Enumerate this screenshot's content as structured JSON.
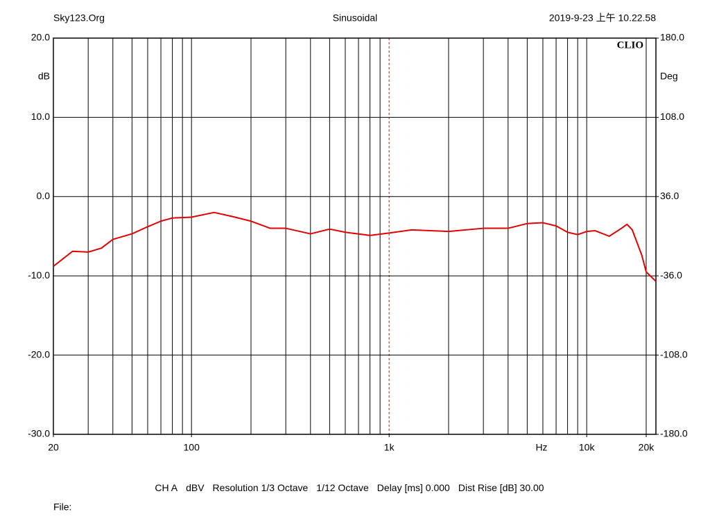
{
  "chart_data": {
    "type": "line",
    "header": {
      "left": "Sky123.Org",
      "title": "Sinusoidal",
      "right": "2019-9-23 上午 10.22.58"
    },
    "brand": "CLIO",
    "ylabel": "dB",
    "y2label": "Deg",
    "xunit": "Hz",
    "xlog": true,
    "xlim": [
      20,
      22400
    ],
    "ylim": [
      -30,
      20
    ],
    "y2lim": [
      -180,
      180
    ],
    "xticks": [
      20,
      100,
      {
        "value": 1000,
        "label": "1k"
      },
      {
        "value": 10000,
        "label": "10k"
      },
      {
        "value": 20000,
        "label": "20k"
      }
    ],
    "xgrid": [
      30,
      40,
      50,
      60,
      70,
      80,
      90,
      100,
      200,
      300,
      400,
      500,
      600,
      700,
      800,
      900,
      1000,
      2000,
      3000,
      4000,
      5000,
      6000,
      7000,
      8000,
      9000,
      10000,
      20000
    ],
    "cursor": 1000,
    "cursor_color": "#e00000",
    "yticks": [
      {
        "value": 20,
        "label": "20.0"
      },
      {
        "value": 10,
        "label": "10.0"
      },
      {
        "value": 0,
        "label": "0.0"
      },
      {
        "value": -10,
        "label": "-10.0"
      },
      {
        "value": -20,
        "label": "-20.0"
      },
      {
        "value": -30,
        "label": "-30.0"
      }
    ],
    "y2ticks": [
      {
        "value": 180,
        "label": "180.0"
      },
      {
        "value": 108,
        "label": "108.0"
      },
      {
        "value": 36,
        "label": "36.0"
      },
      {
        "value": -36,
        "label": "-36.0"
      },
      {
        "value": -108,
        "label": "-108.0"
      },
      {
        "value": -180,
        "label": "-180.0"
      }
    ],
    "grid": true,
    "x": [
      20,
      25,
      30,
      35,
      40,
      50,
      60,
      70,
      80,
      100,
      130,
      160,
      200,
      250,
      300,
      400,
      500,
      600,
      800,
      1000,
      1300,
      2000,
      3000,
      4000,
      5000,
      6000,
      7000,
      8000,
      9000,
      10000,
      11000,
      13000,
      15000,
      16000,
      17000,
      19000,
      20000,
      22400
    ],
    "series": [
      {
        "name": "CH A",
        "color": "#e00000",
        "values": [
          -8.8,
          -6.9,
          -7.0,
          -6.5,
          -5.4,
          -4.7,
          -3.8,
          -3.1,
          -2.7,
          -2.6,
          -2.0,
          -2.5,
          -3.1,
          -4.0,
          -4.0,
          -4.7,
          -4.1,
          -4.5,
          -4.9,
          -4.6,
          -4.2,
          -4.4,
          -4.0,
          -4.0,
          -3.4,
          -3.3,
          -3.7,
          -4.5,
          -4.8,
          -4.4,
          -4.3,
          -5.0,
          -4.0,
          -3.5,
          -4.2,
          -7.4,
          -9.5,
          -10.7
        ]
      }
    ],
    "info": [
      "CH A",
      "dBV",
      "Resolution 1/3 Octave",
      "1/12 Octave",
      "Delay [ms] 0.000",
      "Dist Rise [dB] 30.00"
    ],
    "file": "File:"
  }
}
